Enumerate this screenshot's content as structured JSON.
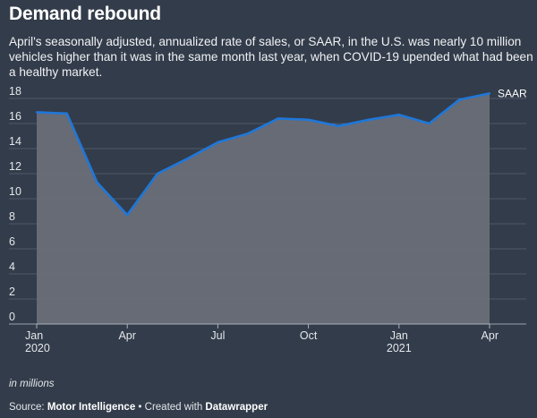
{
  "chart_data": {
    "type": "area",
    "title": "Demand rebound",
    "subtitle": "April's seasonally adjusted, annualized rate of sales, or SAAR, in the U.S. was nearly 10 million vehicles higher than it was in the same month last year, when COVID-19 upended what had been a healthy market.",
    "unit_note": "in millions",
    "x": [
      "2020-01",
      "2020-02",
      "2020-03",
      "2020-04",
      "2020-05",
      "2020-06",
      "2020-07",
      "2020-08",
      "2020-09",
      "2020-10",
      "2020-11",
      "2020-12",
      "2021-01",
      "2021-02",
      "2021-03",
      "2021-04"
    ],
    "series": [
      {
        "name": "SAAR",
        "values": [
          16.9,
          16.8,
          11.3,
          8.7,
          12.0,
          13.2,
          14.5,
          15.2,
          16.4,
          16.3,
          15.8,
          16.3,
          16.7,
          16.0,
          17.9,
          18.4
        ]
      }
    ],
    "ylim": [
      0,
      18
    ],
    "yticks": [
      0,
      2,
      4,
      6,
      8,
      10,
      12,
      14,
      16,
      18
    ],
    "xticks": [
      {
        "index": 0,
        "label": "Jan",
        "sublabel": "2020"
      },
      {
        "index": 3,
        "label": "Apr",
        "sublabel": ""
      },
      {
        "index": 6,
        "label": "Jul",
        "sublabel": ""
      },
      {
        "index": 9,
        "label": "Oct",
        "sublabel": ""
      },
      {
        "index": 12,
        "label": "Jan",
        "sublabel": "2021"
      },
      {
        "index": 15,
        "label": "Apr",
        "sublabel": ""
      }
    ],
    "grid": true,
    "colors": {
      "line": "#1f77d8",
      "area": "#6b7079",
      "grid": "#4f5866"
    }
  },
  "footer": {
    "source_prefix": "Source: ",
    "source_name": "Motor Intelligence",
    "created_with": " • Created with ",
    "tool": "Datawrapper"
  }
}
